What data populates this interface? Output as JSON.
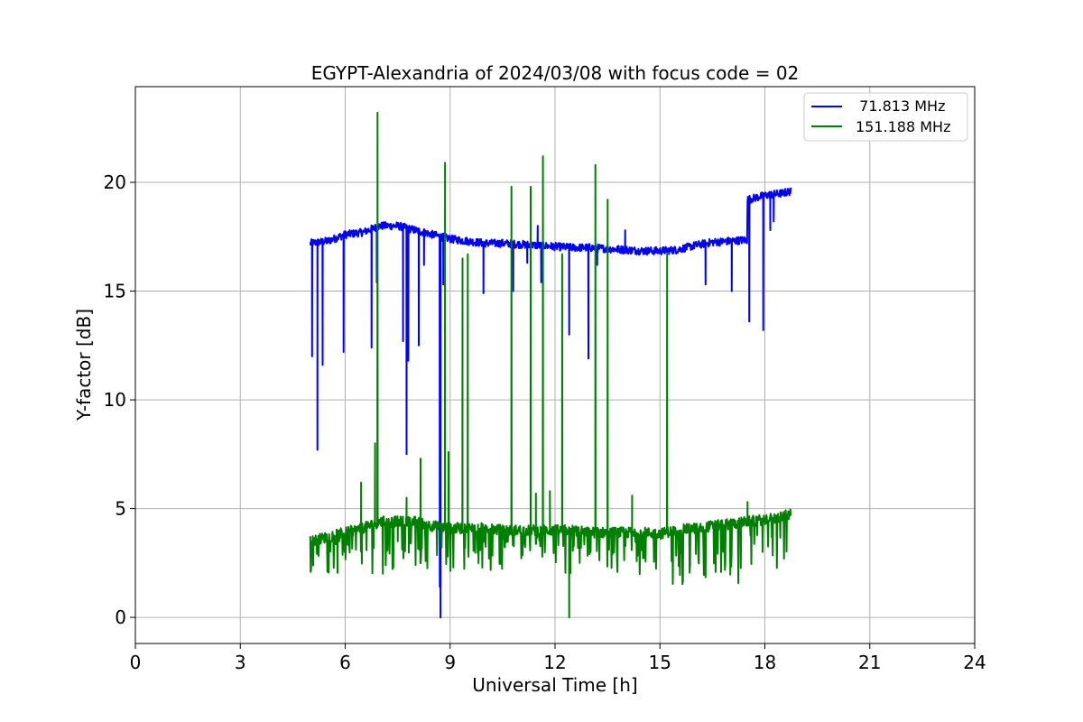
{
  "chart_data": {
    "type": "line",
    "title": "EGYPT-Alexandria of 2024/03/08 with focus code = 02",
    "xlabel": "Universal Time [h]",
    "ylabel": "Y-factor [dB]",
    "xlim": [
      0,
      24
    ],
    "ylim": [
      -1.2,
      24.4
    ],
    "xticks": [
      0,
      3,
      6,
      9,
      12,
      15,
      18,
      21,
      24
    ],
    "yticks": [
      0,
      5,
      10,
      15,
      20
    ],
    "grid": true,
    "legend_position": "upper right",
    "series": [
      {
        "name": "  71.813 MHz",
        "color": "#0000ff",
        "baseline": [
          [
            5.0,
            17.2
          ],
          [
            5.5,
            17.3
          ],
          [
            6.0,
            17.6
          ],
          [
            6.5,
            17.7
          ],
          [
            7.0,
            18.0
          ],
          [
            7.5,
            18.0
          ],
          [
            8.0,
            17.8
          ],
          [
            8.5,
            17.6
          ],
          [
            9.0,
            17.4
          ],
          [
            9.5,
            17.3
          ],
          [
            10.0,
            17.2
          ],
          [
            10.5,
            17.2
          ],
          [
            11.0,
            17.15
          ],
          [
            11.5,
            17.1
          ],
          [
            12.0,
            17.05
          ],
          [
            12.5,
            17.0
          ],
          [
            13.0,
            17.0
          ],
          [
            13.5,
            16.95
          ],
          [
            14.0,
            16.9
          ],
          [
            14.5,
            16.85
          ],
          [
            15.0,
            16.85
          ],
          [
            15.5,
            16.9
          ],
          [
            16.0,
            17.1
          ],
          [
            16.5,
            17.25
          ],
          [
            17.0,
            17.3
          ],
          [
            17.45,
            17.35
          ],
          [
            17.5,
            19.2
          ],
          [
            18.0,
            19.4
          ],
          [
            18.5,
            19.5
          ],
          [
            18.75,
            19.6
          ]
        ],
        "noise": 0.18,
        "spikes": [
          [
            5.05,
            12.0
          ],
          [
            5.2,
            7.7
          ],
          [
            5.35,
            11.6
          ],
          [
            5.95,
            12.2
          ],
          [
            6.75,
            12.4
          ],
          [
            6.9,
            15.4
          ],
          [
            7.65,
            12.7
          ],
          [
            7.75,
            7.5
          ],
          [
            7.8,
            11.8
          ],
          [
            8.1,
            12.5
          ],
          [
            8.25,
            16.2
          ],
          [
            8.7,
            1.4
          ],
          [
            8.72,
            0.0
          ],
          [
            8.8,
            15.3
          ],
          [
            9.95,
            14.9
          ],
          [
            10.8,
            15.0
          ],
          [
            11.2,
            16.3
          ],
          [
            11.6,
            15.4
          ],
          [
            12.4,
            13.0
          ],
          [
            12.95,
            11.9
          ],
          [
            13.2,
            16.2
          ],
          [
            16.3,
            15.3
          ],
          [
            17.05,
            15.0
          ],
          [
            17.55,
            13.6
          ],
          [
            17.95,
            13.2
          ],
          [
            18.15,
            17.8
          ],
          [
            18.25,
            18.2
          ]
        ],
        "up_spikes": [
          [
            11.5,
            18.0
          ],
          [
            14.0,
            17.8
          ]
        ]
      },
      {
        "name": "151.188 MHz",
        "color": "#008000",
        "baseline": [
          [
            5.0,
            3.5
          ],
          [
            5.5,
            3.7
          ],
          [
            6.0,
            3.9
          ],
          [
            6.5,
            4.1
          ],
          [
            7.0,
            4.4
          ],
          [
            7.5,
            4.4
          ],
          [
            8.0,
            4.4
          ],
          [
            8.5,
            4.2
          ],
          [
            9.0,
            4.1
          ],
          [
            9.5,
            4.1
          ],
          [
            10.0,
            4.1
          ],
          [
            10.5,
            4.0
          ],
          [
            11.0,
            4.0
          ],
          [
            11.5,
            4.0
          ],
          [
            12.0,
            4.0
          ],
          [
            12.5,
            4.0
          ],
          [
            13.0,
            3.9
          ],
          [
            13.5,
            3.9
          ],
          [
            14.0,
            3.9
          ],
          [
            14.5,
            3.9
          ],
          [
            15.0,
            3.85
          ],
          [
            15.5,
            4.0
          ],
          [
            16.0,
            4.1
          ],
          [
            16.5,
            4.2
          ],
          [
            17.0,
            4.3
          ],
          [
            17.5,
            4.4
          ],
          [
            18.0,
            4.5
          ],
          [
            18.5,
            4.6
          ],
          [
            18.75,
            4.8
          ]
        ],
        "noise": 0.25,
        "dropouts": [
          [
            5.0,
            9.0,
            2.0
          ],
          [
            9.0,
            12.0,
            2.1
          ],
          [
            12.0,
            15.2,
            1.9
          ],
          [
            15.2,
            17.5,
            1.5
          ],
          [
            17.5,
            18.75,
            2.2
          ]
        ],
        "spikes": [
          [
            6.45,
            6.2
          ],
          [
            6.85,
            8.0
          ],
          [
            6.92,
            23.2
          ],
          [
            7.5,
            3.5
          ],
          [
            7.75,
            5.5
          ],
          [
            8.15,
            7.3
          ],
          [
            8.85,
            20.9
          ],
          [
            8.95,
            7.6
          ],
          [
            9.35,
            16.5
          ],
          [
            9.5,
            16.7
          ],
          [
            10.75,
            19.8
          ],
          [
            11.3,
            19.8
          ],
          [
            11.45,
            5.7
          ],
          [
            11.65,
            21.2
          ],
          [
            11.85,
            5.8
          ],
          [
            12.2,
            16.7
          ],
          [
            12.4,
            0.0
          ],
          [
            13.15,
            20.8
          ],
          [
            13.5,
            19.2
          ],
          [
            14.2,
            5.6
          ],
          [
            15.2,
            16.7
          ],
          [
            17.5,
            5.3
          ]
        ]
      }
    ]
  }
}
